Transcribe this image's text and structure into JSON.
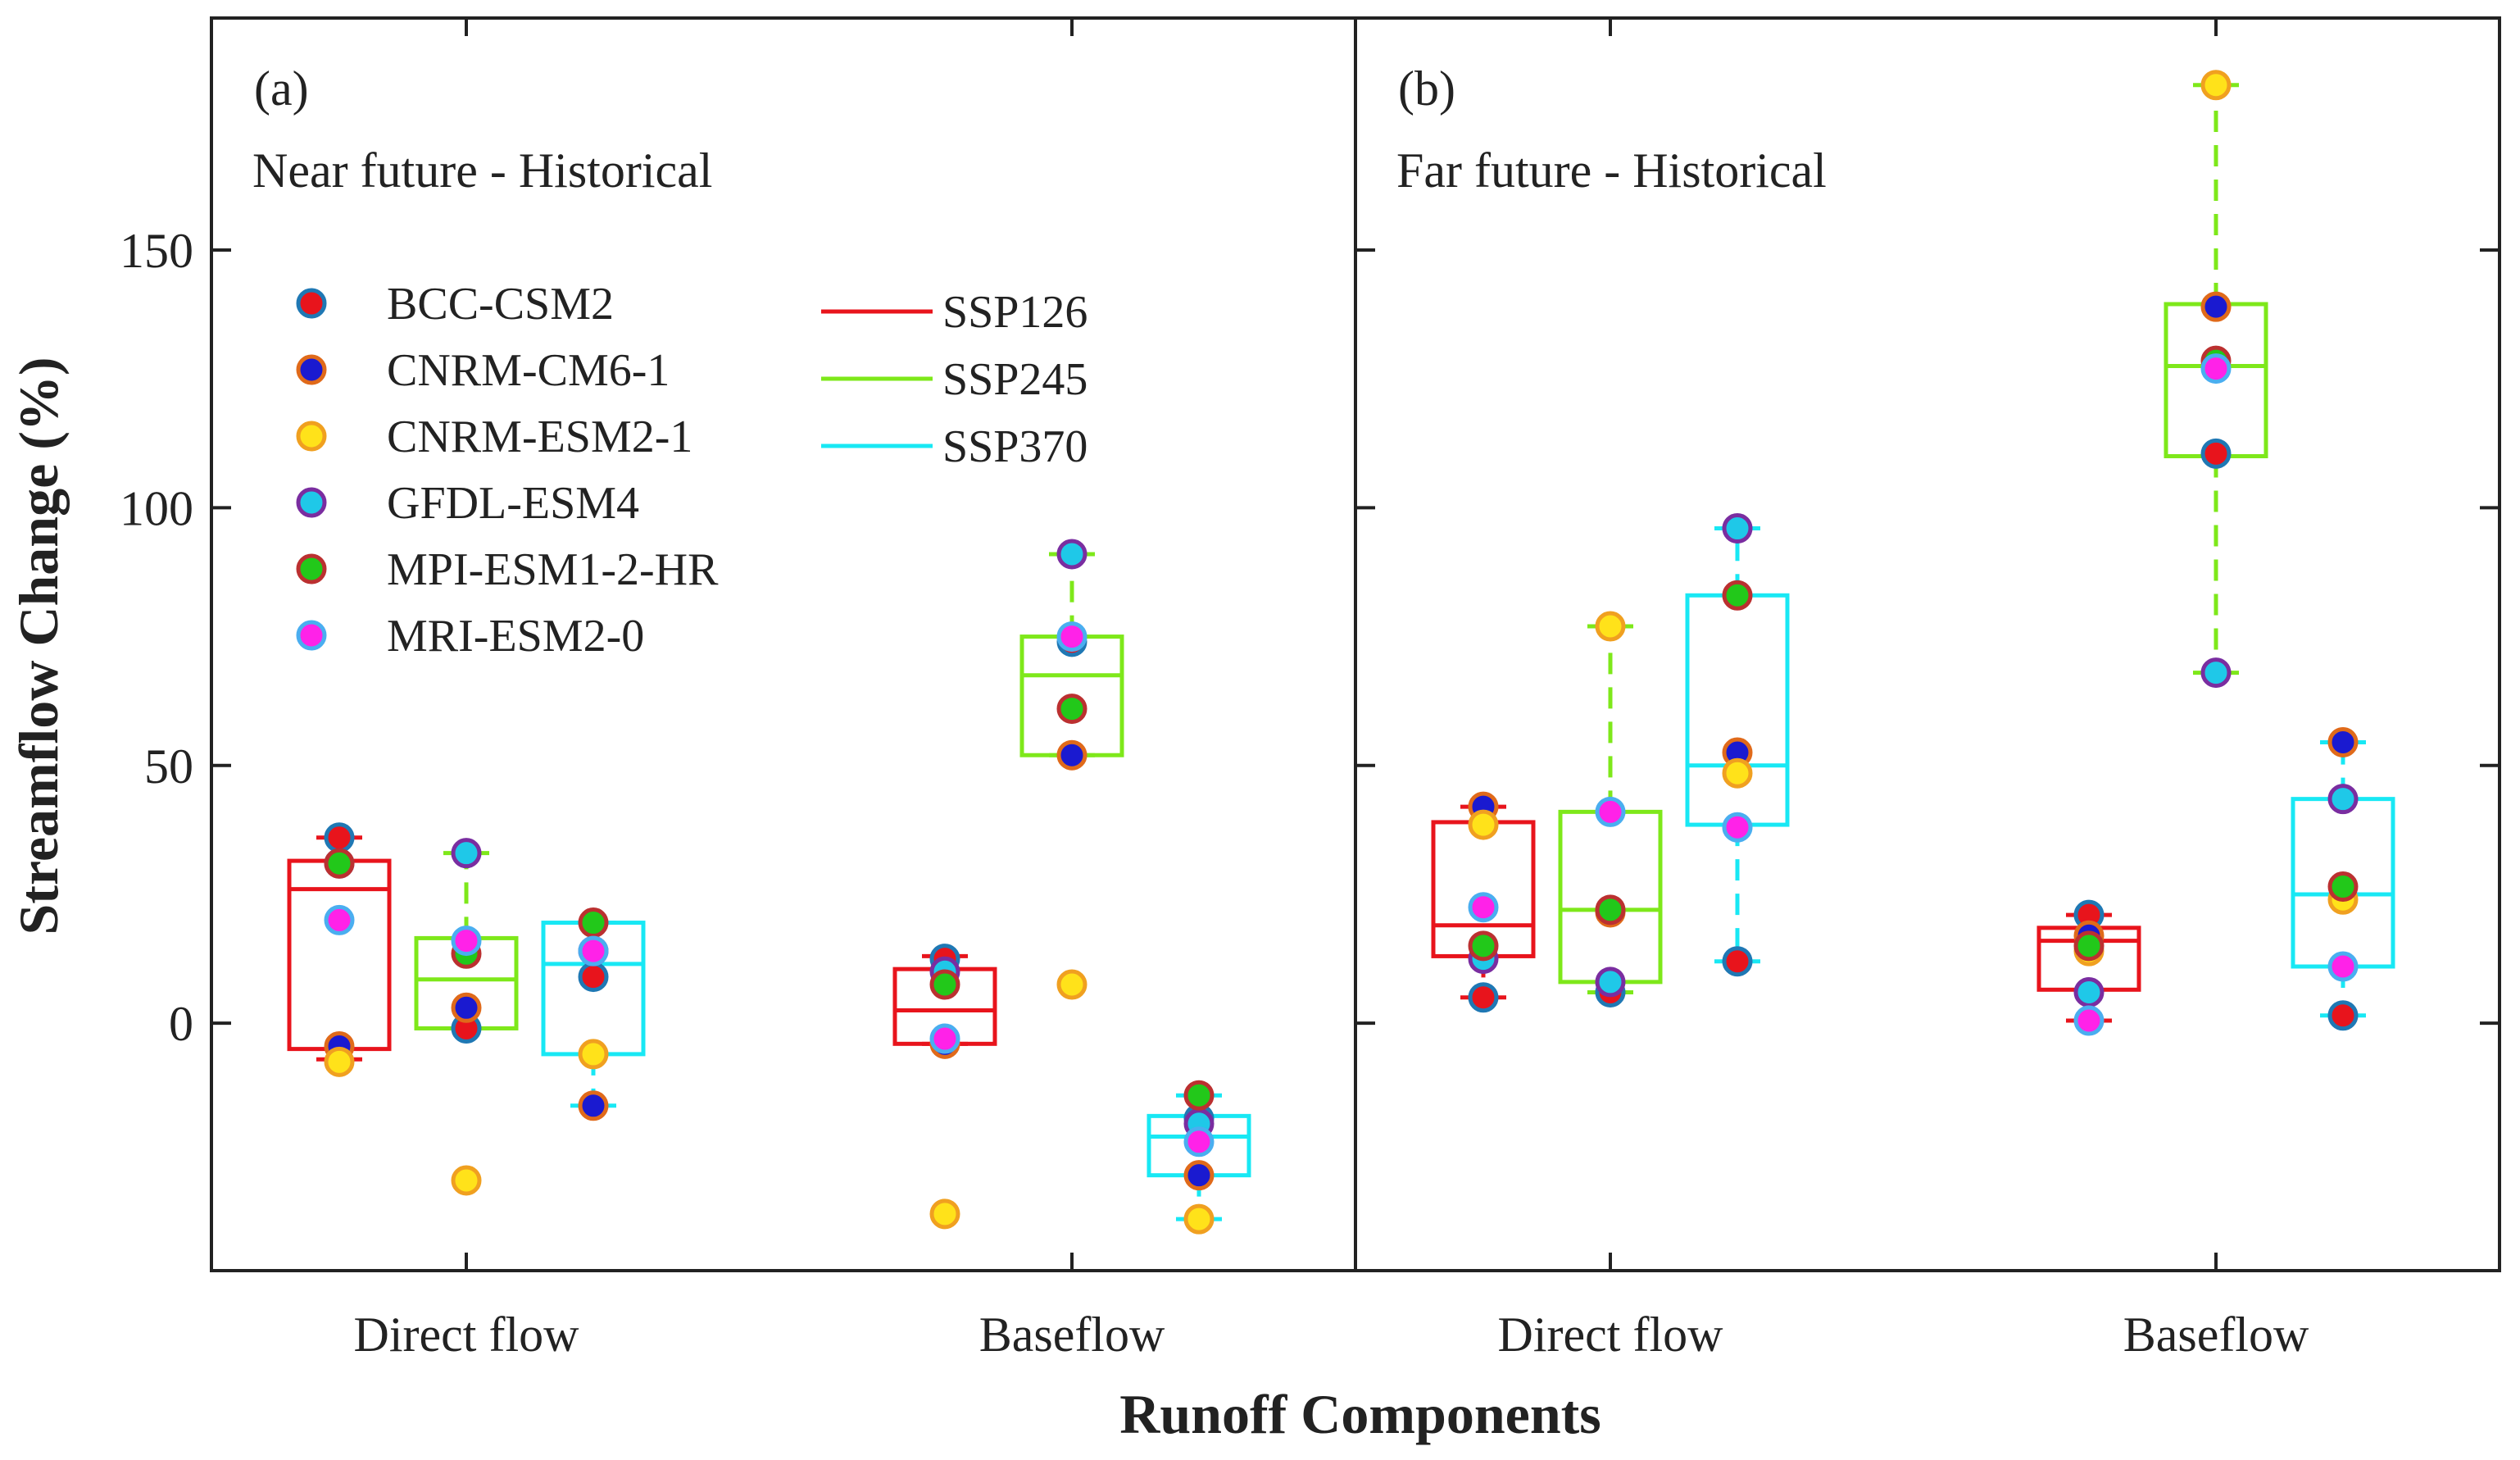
{
  "chart_data": {
    "type": "box",
    "ylabel": "Streamflow Change (%)",
    "xlabel": "Runoff Components",
    "ylim": [
      -48,
      195
    ],
    "yticks": [
      0,
      50,
      100,
      150
    ],
    "categories": [
      "Direct flow",
      "Baseflow"
    ],
    "scenarios": [
      {
        "name": "SSP126",
        "color": "#e8141c"
      },
      {
        "name": "SSP245",
        "color": "#7ee81a"
      },
      {
        "name": "SSP370",
        "color": "#18e8f4"
      }
    ],
    "models": [
      {
        "name": "BCC-CSM2",
        "fill": "#e8141c",
        "edge": "#1f78b4"
      },
      {
        "name": "CNRM-CM6-1",
        "fill": "#1a1ad0",
        "edge": "#e06a1a"
      },
      {
        "name": "CNRM-ESM2-1",
        "fill": "#ffe21a",
        "edge": "#f0a020"
      },
      {
        "name": "GFDL-ESM4",
        "fill": "#1fc8e8",
        "edge": "#7a2da0"
      },
      {
        "name": "MPI-ESM1-2-HR",
        "fill": "#22c81a",
        "edge": "#bb3030"
      },
      {
        "name": "MRI-ESM2-0",
        "fill": "#ff22e8",
        "edge": "#4aaef0"
      }
    ],
    "panels": [
      {
        "label": "(a)",
        "title": "Near future - Historical",
        "groups": [
          {
            "category": "Direct flow",
            "scenario": "SSP126",
            "box": {
              "min": -7,
              "q1": -5,
              "median": 26,
              "q3": 31.5,
              "max": 36
            },
            "points": [
              36,
              -4.5,
              -7.5,
              31,
              31,
              20
            ]
          },
          {
            "category": "Direct flow",
            "scenario": "SSP245",
            "box": {
              "min": -1,
              "q1": -1,
              "median": 8.5,
              "q3": 16.5,
              "max": 33
            },
            "points": [
              -1,
              3,
              -30.5,
              33,
              13.5,
              16
            ]
          },
          {
            "category": "Direct flow",
            "scenario": "SSP370",
            "box": {
              "min": -16,
              "q1": -6,
              "median": 11.5,
              "q3": 19.5,
              "max": 19.5
            },
            "points": [
              9,
              -16,
              -6,
              14,
              19.5,
              14
            ]
          },
          {
            "category": "Baseflow",
            "scenario": "SSP126",
            "box": {
              "min": -4,
              "q1": -4,
              "median": 2.5,
              "q3": 10.5,
              "max": 13
            },
            "points": [
              12.5,
              -4,
              -37,
              10,
              7.5,
              -3
            ]
          },
          {
            "category": "Baseflow",
            "scenario": "SSP245",
            "box": {
              "min": 52,
              "q1": 52,
              "median": 67.5,
              "q3": 75,
              "max": 91
            },
            "points": [
              74,
              52,
              7.5,
              91,
              61,
              75
            ]
          },
          {
            "category": "Baseflow",
            "scenario": "SSP370",
            "box": {
              "min": -38,
              "q1": -29.5,
              "median": -22,
              "q3": -18,
              "max": -14
            },
            "points": [
              -18.5,
              -29.5,
              -38,
              -19.5,
              -14,
              -23
            ]
          }
        ]
      },
      {
        "label": "(b)",
        "title": "Far future - Historical",
        "groups": [
          {
            "category": "Direct flow",
            "scenario": "SSP126",
            "box": {
              "min": 5,
              "q1": 13,
              "median": 19,
              "q3": 39,
              "max": 42
            },
            "points": [
              5,
              42,
              38.5,
              12.5,
              15,
              22.5
            ]
          },
          {
            "category": "Direct flow",
            "scenario": "SSP245",
            "box": {
              "min": 6,
              "q1": 8,
              "median": 22,
              "q3": 41,
              "max": 77
            },
            "points": [
              6,
              21.5,
              77,
              8,
              22,
              41
            ]
          },
          {
            "category": "Direct flow",
            "scenario": "SSP370",
            "box": {
              "min": 12,
              "q1": 38.5,
              "median": 50,
              "q3": 83,
              "max": 96
            },
            "points": [
              12,
              52.5,
              48.5,
              96,
              83,
              38
            ]
          },
          {
            "category": "Baseflow",
            "scenario": "SSP126",
            "box": {
              "min": 0.5,
              "q1": 6.5,
              "median": 16,
              "q3": 18.5,
              "max": 21
            },
            "points": [
              21,
              17,
              14,
              6,
              15,
              0.5
            ]
          },
          {
            "category": "Baseflow",
            "scenario": "SSP245",
            "box": {
              "min": 68,
              "q1": 110,
              "median": 127.5,
              "q3": 139.5,
              "max": 182
            },
            "points": [
              110.5,
              139,
              182,
              68,
              128.5,
              127
            ]
          },
          {
            "category": "Baseflow",
            "scenario": "SSP370",
            "box": {
              "min": 1.5,
              "q1": 11,
              "median": 25,
              "q3": 43.5,
              "max": 54.5
            },
            "points": [
              1.5,
              54.5,
              24,
              43.5,
              26.5,
              11
            ]
          }
        ]
      }
    ]
  }
}
